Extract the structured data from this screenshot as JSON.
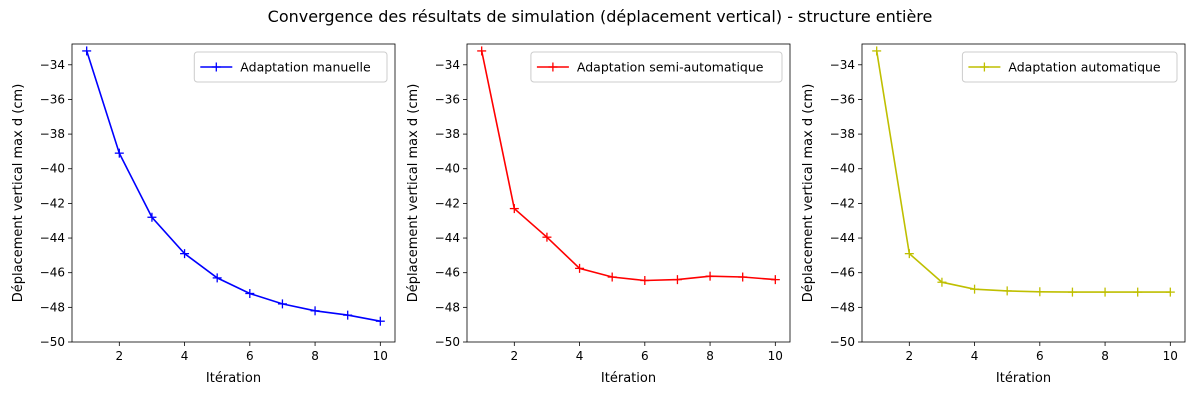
{
  "figure": {
    "suptitle": "Convergence des résultats de simulation (déplacement vertical) - structure entière"
  },
  "chart_data": [
    {
      "type": "line",
      "xlabel": "Itération",
      "ylabel": "Déplacement vertical max d (cm)",
      "xlim": [
        0.55,
        10.45
      ],
      "ylim": [
        -50,
        -32.8
      ],
      "xticks": [
        2,
        4,
        6,
        8,
        10
      ],
      "yticks": [
        -50,
        -48,
        -46,
        -44,
        -42,
        -40,
        -38,
        -36,
        -34
      ],
      "legend_position": "upper right",
      "grid": false,
      "series": [
        {
          "name": "Adaptation manuelle",
          "color": "#0000ff",
          "marker": "+",
          "x": [
            1,
            2,
            3,
            4,
            5,
            6,
            7,
            8,
            9,
            10
          ],
          "y": [
            -33.2,
            -39.1,
            -42.8,
            -44.9,
            -46.3,
            -47.2,
            -47.8,
            -48.2,
            -48.45,
            -48.8
          ]
        }
      ]
    },
    {
      "type": "line",
      "xlabel": "Itération",
      "ylabel": "Déplacement vertical max d (cm)",
      "xlim": [
        0.55,
        10.45
      ],
      "ylim": [
        -50,
        -32.8
      ],
      "xticks": [
        2,
        4,
        6,
        8,
        10
      ],
      "yticks": [
        -50,
        -48,
        -46,
        -44,
        -42,
        -40,
        -38,
        -36,
        -34
      ],
      "legend_position": "upper right",
      "grid": false,
      "series": [
        {
          "name": "Adaptation semi-automatique",
          "color": "#ff0000",
          "marker": "+",
          "x": [
            1,
            2,
            3,
            4,
            5,
            6,
            7,
            8,
            9,
            10
          ],
          "y": [
            -33.2,
            -42.3,
            -43.95,
            -45.75,
            -46.25,
            -46.45,
            -46.4,
            -46.2,
            -46.25,
            -46.4
          ]
        }
      ]
    },
    {
      "type": "line",
      "xlabel": "Itération",
      "ylabel": "Déplacement vertical max d (cm)",
      "xlim": [
        0.55,
        10.45
      ],
      "ylim": [
        -50,
        -32.8
      ],
      "xticks": [
        2,
        4,
        6,
        8,
        10
      ],
      "yticks": [
        -50,
        -48,
        -46,
        -44,
        -42,
        -40,
        -38,
        -36,
        -34
      ],
      "legend_position": "upper right",
      "grid": false,
      "series": [
        {
          "name": "Adaptation automatique",
          "color": "#bfbf00",
          "marker": "+",
          "x": [
            1,
            2,
            3,
            4,
            5,
            6,
            7,
            8,
            9,
            10
          ],
          "y": [
            -33.2,
            -44.9,
            -46.55,
            -46.95,
            -47.05,
            -47.1,
            -47.12,
            -47.12,
            -47.12,
            -47.12
          ]
        }
      ]
    }
  ]
}
